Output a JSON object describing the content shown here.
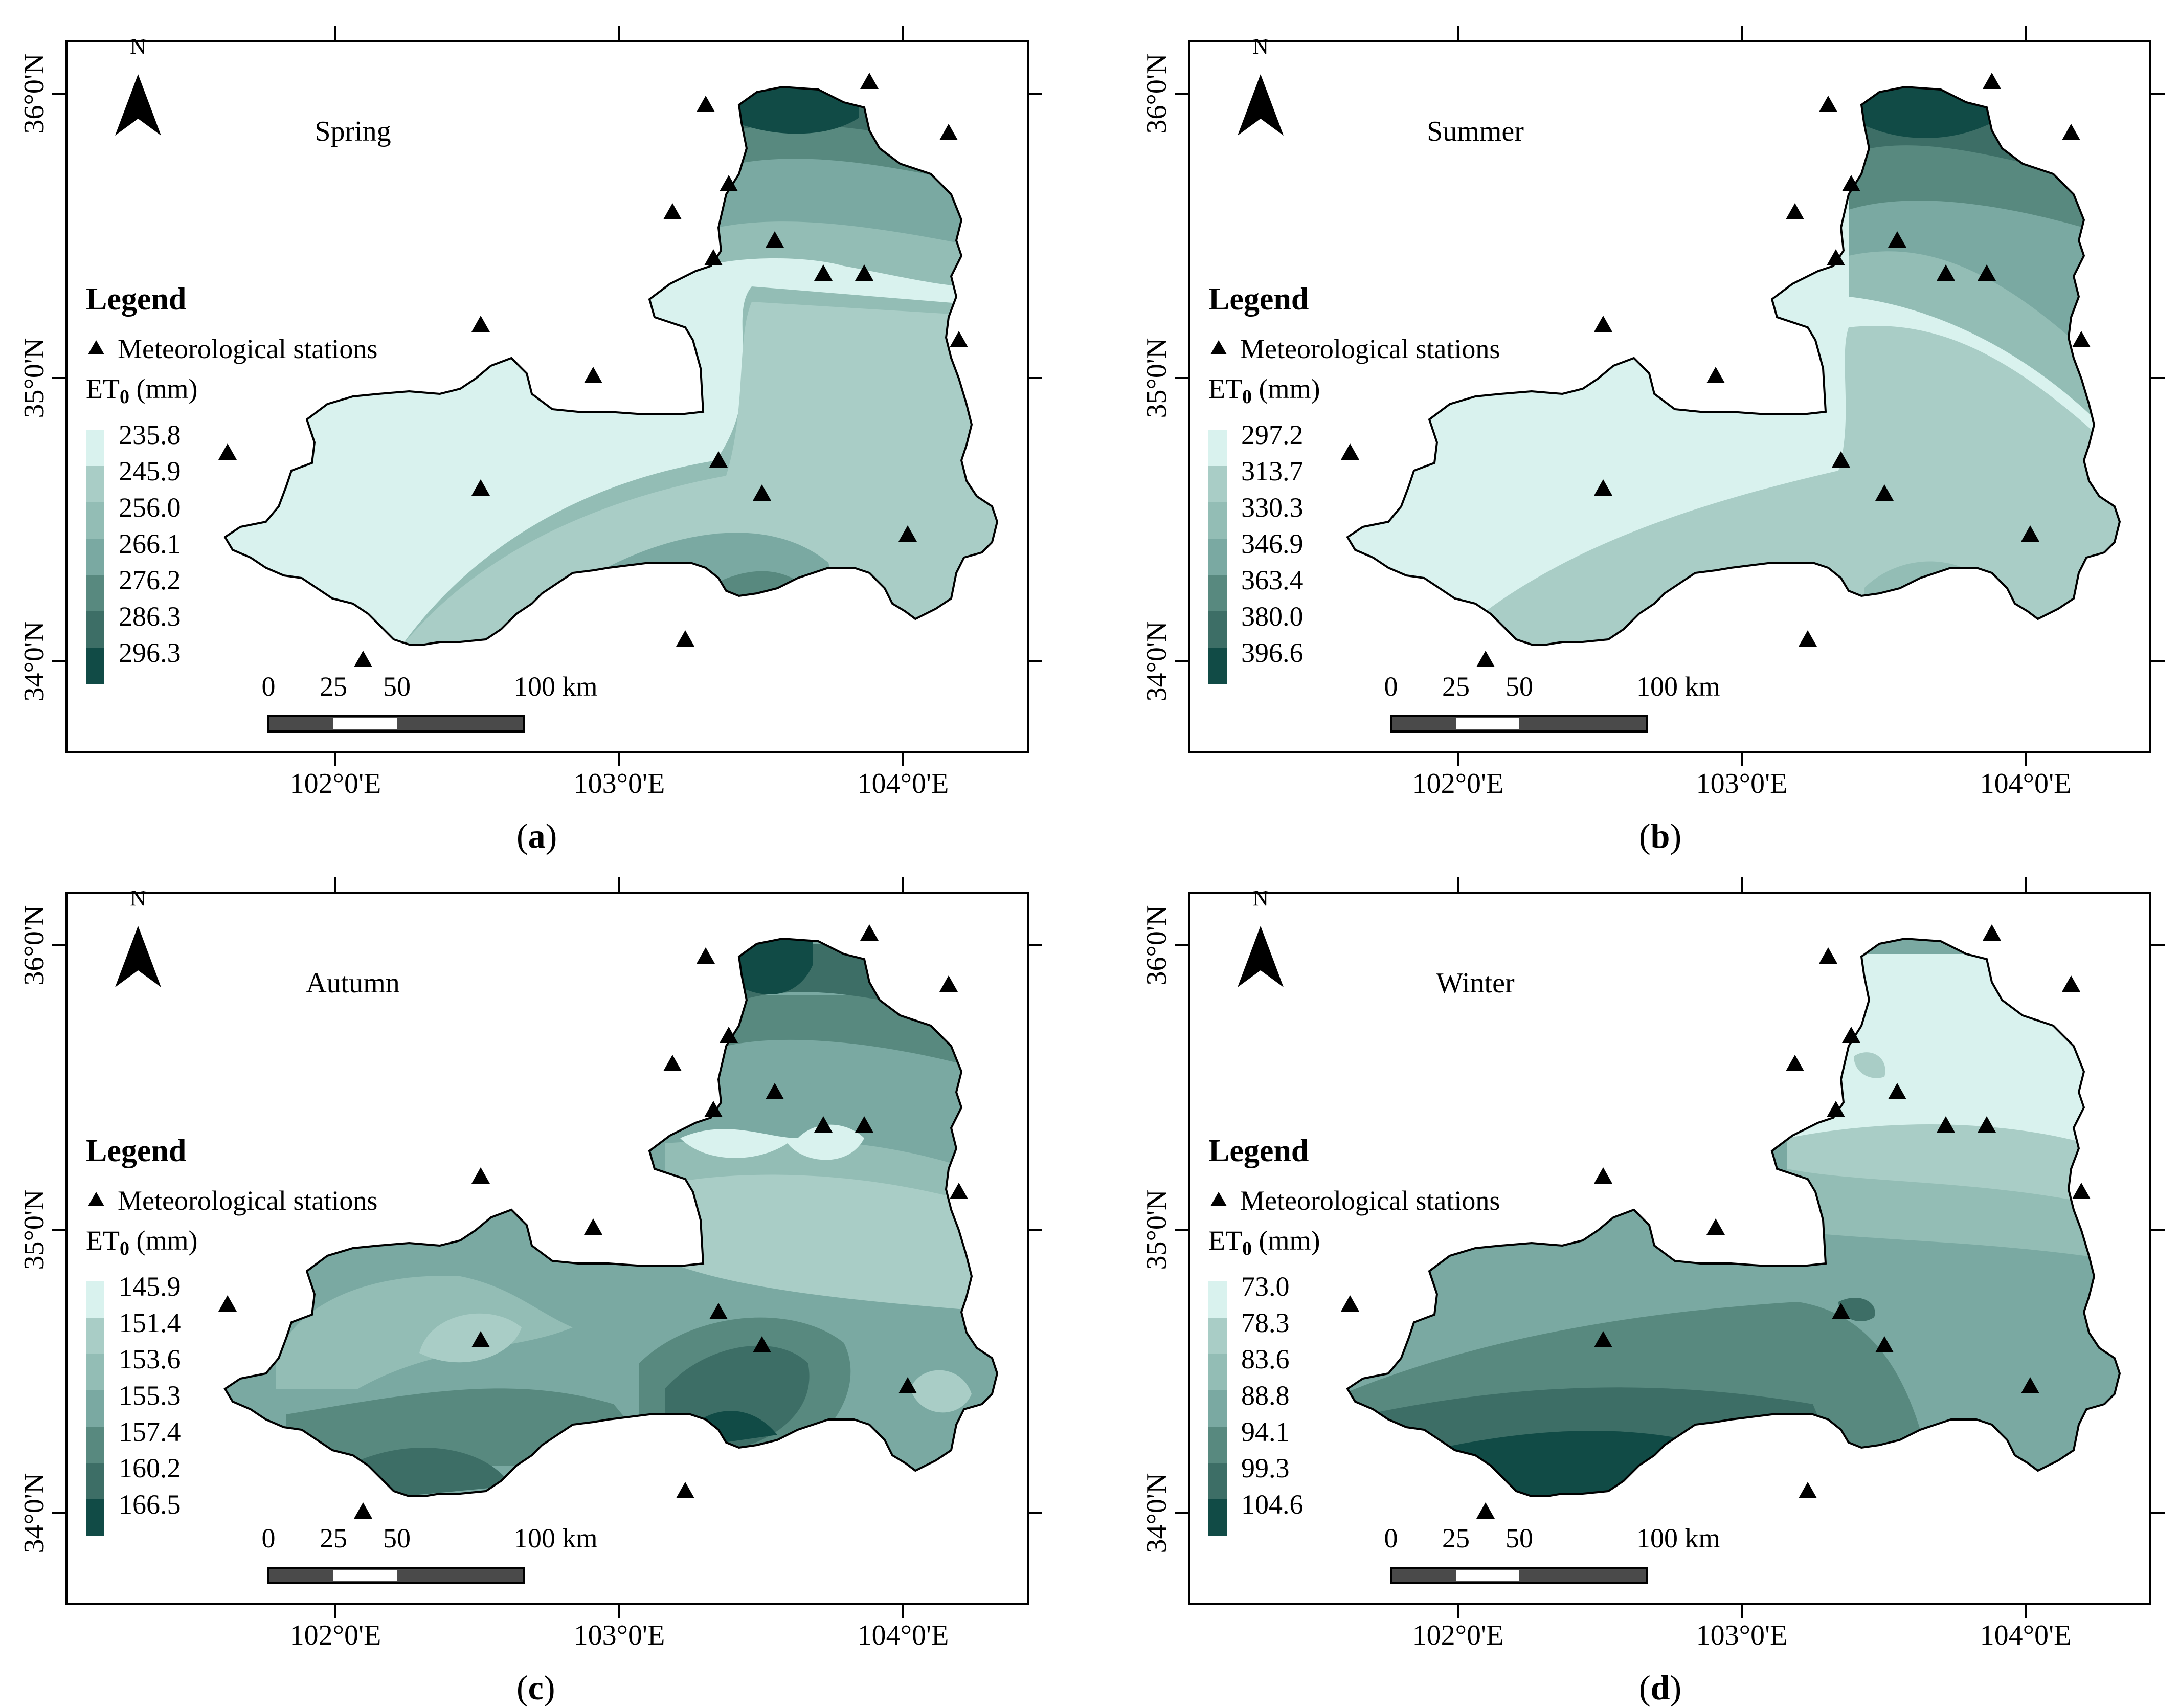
{
  "panels": [
    {
      "id": "a",
      "caption_letter": "a",
      "season": "Spring",
      "legend_values": [
        "235.8",
        "245.9",
        "256.0",
        "266.1",
        "276.2",
        "286.3",
        "296.3"
      ]
    },
    {
      "id": "b",
      "caption_letter": "b",
      "season": "Summer",
      "legend_values": [
        "297.2",
        "313.7",
        "330.3",
        "346.9",
        "363.4",
        "380.0",
        "396.6"
      ]
    },
    {
      "id": "c",
      "caption_letter": "c",
      "season": "Autumn",
      "legend_values": [
        "145.9",
        "151.4",
        "153.6",
        "155.3",
        "157.4",
        "160.2",
        "166.5"
      ]
    },
    {
      "id": "d",
      "caption_letter": "d",
      "season": "Winter",
      "legend_values": [
        "73.0",
        "78.3",
        "83.6",
        "88.8",
        "94.1",
        "99.3",
        "104.6"
      ]
    }
  ],
  "legend": {
    "title": "Legend",
    "station_label": "Meteorological stations",
    "et0_label_main": "ET",
    "et0_label_sub": "0",
    "et0_label_unit": " (mm)"
  },
  "north_label": "N",
  "axes": {
    "x_ticks": [
      "102°0'E",
      "103°0'E",
      "104°0'E"
    ],
    "y_ticks": [
      "36°0'N",
      "35°0'N",
      "34°0'N"
    ]
  },
  "scale_bar": {
    "labels": [
      "0",
      "25",
      "50",
      "100 km"
    ]
  },
  "colors": {
    "ramp": [
      "#d9f2ee",
      "#a9cdc6",
      "#93bdb5",
      "#7aa9a2",
      "#58897f",
      "#3d6e66",
      "#114b46"
    ],
    "frame": "#000000",
    "boundary": "#000000"
  }
}
